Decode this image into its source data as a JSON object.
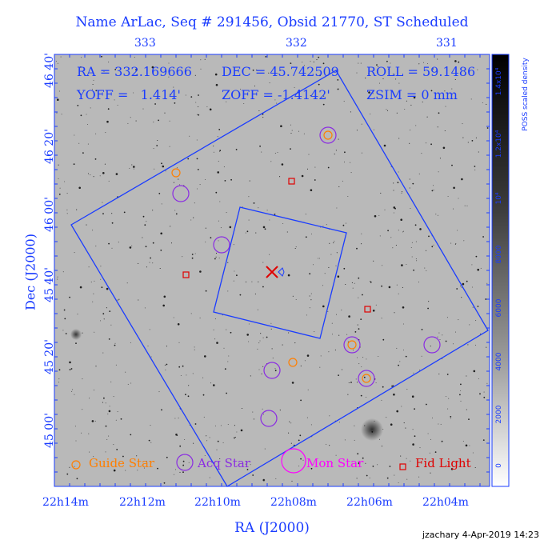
{
  "title": "Name ArLac, Seq # 291456, Obsid 21770, ST Scheduled",
  "info": {
    "ra": "RA = 332.169666",
    "dec": "DEC = 45.742509",
    "roll": "ROLL = 59.1486",
    "yoff": "YOFF =   1.414'",
    "zoff": "ZOFF = -1.4142'",
    "zsim": "ZSIM = 0 mm"
  },
  "top_ticks": [
    "333",
    "332",
    "331"
  ],
  "dec_axis_label": "Dec (J2000)",
  "dec_ticks": [
    "46 40'",
    "46 20'",
    "46 00'",
    "45 40'",
    "45 20'",
    "45 00'"
  ],
  "ra_axis_label": "RA (J2000)",
  "ra_ticks": [
    "22h14m",
    "22h12m",
    "22h10m",
    "22h08m",
    "22h06m",
    "22h04m"
  ],
  "colorbar": {
    "label": "POSS scaled density",
    "ticks": [
      "1.4x10⁴",
      "1.2x10⁴",
      "10⁴",
      "8000",
      "6000",
      "4000",
      "2000",
      "0"
    ]
  },
  "legend": {
    "guide": "Guide Star",
    "acq": "Acq Star",
    "mon": "Mon Star",
    "fid": "Fid Light"
  },
  "footer": "jzachary  4-Apr-2019 14:23",
  "colors": {
    "axis": "#1a3cff",
    "guide": "#ff7f00",
    "acq": "#8a2be2",
    "mon": "#ff00ff",
    "fid": "#e00000",
    "target": "#e00000",
    "field": "#1a3cff"
  }
}
